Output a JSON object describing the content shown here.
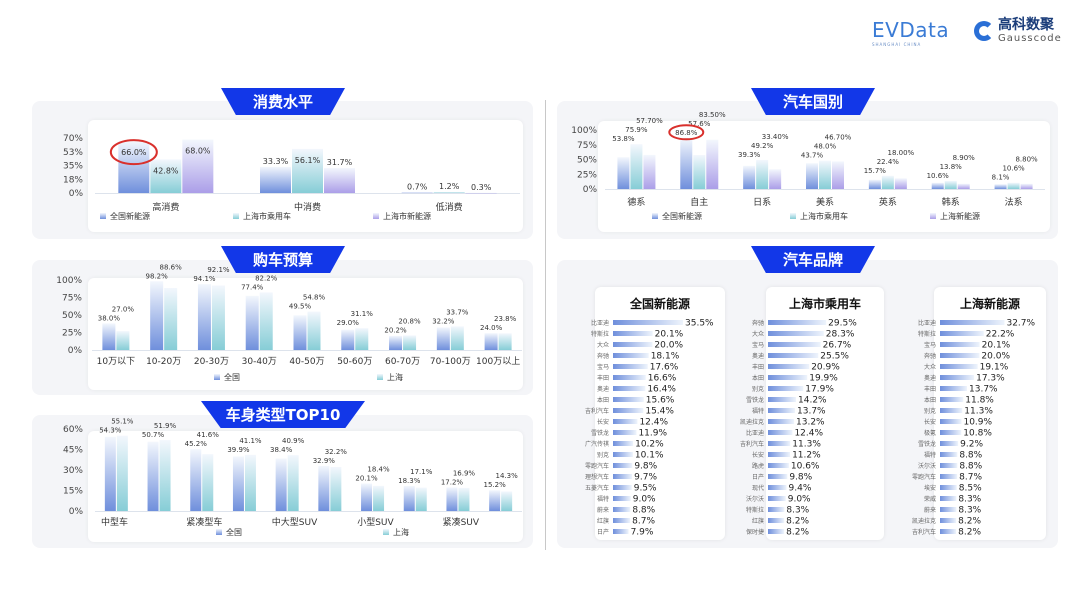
{
  "logos": {
    "evdata": "EVData",
    "evdata_sub": "SHANGHAI CHINA",
    "gauss_cn": "高科数聚",
    "gauss_en": "Gausscode"
  },
  "colors": {
    "banner": "#1237e8",
    "series_blue": "#6f8fdc",
    "series_teal": "#86cdd6",
    "series_purple": "#ab9ee8",
    "highlight_circle": "#d9302c"
  },
  "chart_data": [
    {
      "id": "consumption",
      "type": "bar",
      "title": "消费水平",
      "yticks": [
        "0%",
        "18%",
        "35%",
        "53%",
        "70%"
      ],
      "ylim": [
        0,
        70
      ],
      "categories": [
        "高消费",
        "中消费",
        "低消费"
      ],
      "series": [
        {
          "name": "全国新能源",
          "values": [
            66.0,
            33.3,
            0.7
          ],
          "labels": [
            "66.0%",
            "33.3%",
            "0.7%"
          ]
        },
        {
          "name": "上海市乘用车",
          "values": [
            42.8,
            56.1,
            1.2
          ],
          "labels": [
            "42.8%",
            "56.1%",
            "1.2%"
          ]
        },
        {
          "name": "上海市新能源",
          "values": [
            68.0,
            31.7,
            0.3
          ],
          "labels": [
            "68.0%",
            "31.7%",
            "0.3%"
          ]
        }
      ],
      "annotation": "red circle around 66.0%"
    },
    {
      "id": "budget",
      "type": "bar",
      "title": "购车预算",
      "yticks": [
        "0%",
        "25%",
        "50%",
        "75%",
        "100%"
      ],
      "ylim": [
        0,
        100
      ],
      "categories": [
        "10万以下",
        "10-20万",
        "20-30万",
        "30-40万",
        "40-50万",
        "50-60万",
        "60-70万",
        "70-100万",
        "100万以上"
      ],
      "series": [
        {
          "name": "全国",
          "values": [
            38.0,
            98.2,
            94.1,
            77.4,
            49.5,
            29.0,
            20.2,
            32.2,
            24.0
          ],
          "labels": [
            "38.0%",
            "98.2%",
            "94.1%",
            "77.4%",
            "49.5%",
            "29.0%",
            "20.2%",
            "32.2%",
            "24.0%"
          ]
        },
        {
          "name": "上海",
          "values": [
            27.0,
            88.6,
            92.1,
            82.2,
            54.8,
            31.1,
            20.8,
            33.7,
            23.8
          ],
          "labels": [
            "27.0%",
            "88.6%",
            "92.1%",
            "82.2%",
            "54.8%",
            "31.1%",
            "20.8%",
            "33.7%",
            "23.8%"
          ]
        }
      ]
    },
    {
      "id": "bodytype",
      "type": "bar",
      "title": "车身类型TOP10",
      "yticks": [
        "0%",
        "15%",
        "30%",
        "45%",
        "60%"
      ],
      "ylim": [
        0,
        60
      ],
      "categories": [
        "中型车",
        "",
        "紧凑型车",
        "",
        "中大型SUV",
        "",
        "小型SUV",
        "",
        "紧凑SUV",
        ""
      ],
      "series": [
        {
          "name": "全国",
          "values": [
            54.3,
            50.7,
            45.2,
            39.9,
            38.4,
            32.9,
            20.1,
            18.3,
            17.2,
            15.2
          ],
          "labels": [
            "54.3%",
            "50.7%",
            "45.2%",
            "39.9%",
            "38.4%",
            "32.9%",
            "20.1%",
            "18.3%",
            "17.2%",
            "15.2%"
          ]
        },
        {
          "name": "上海",
          "values": [
            55.1,
            51.9,
            41.6,
            41.1,
            40.9,
            32.2,
            18.4,
            17.1,
            16.9,
            14.3
          ],
          "labels": [
            "55.1%",
            "51.9%",
            "41.6%",
            "41.1%",
            "40.9%",
            "32.2%",
            "18.4%",
            "17.1%",
            "16.9%",
            "14.3%"
          ]
        }
      ]
    },
    {
      "id": "country",
      "type": "bar",
      "title": "汽车国别",
      "yticks": [
        "0%",
        "25%",
        "50%",
        "75%",
        "100%"
      ],
      "ylim": [
        0,
        100
      ],
      "categories": [
        "德系",
        "自主",
        "日系",
        "美系",
        "英系",
        "韩系",
        "法系"
      ],
      "series": [
        {
          "name": "全国新能源",
          "values": [
            53.8,
            86.8,
            39.3,
            43.7,
            15.7,
            10.6,
            8.1
          ],
          "labels": [
            "53.8%",
            "86.8%",
            "39.3%",
            "43.7%",
            "15.7%",
            "10.6%",
            "8.1%"
          ]
        },
        {
          "name": "上海市乘用车",
          "values": [
            75.9,
            57.6,
            49.2,
            48.0,
            22.4,
            13.8,
            10.6
          ],
          "labels": [
            "75.9%",
            "57.6%",
            "49.2%",
            "48.0%",
            "22.4%",
            "13.8%",
            "10.6%"
          ]
        },
        {
          "name": "上海新能源",
          "values": [
            57.7,
            83.5,
            33.4,
            46.7,
            18.0,
            8.9,
            8.8
          ],
          "labels": [
            "57.70%",
            "83.50%",
            "33.40%",
            "46.70%",
            "18.00%",
            "8.90%",
            "8.80%"
          ]
        }
      ],
      "annotation": "red circle around 86.8%"
    },
    {
      "id": "brands",
      "type": "bar",
      "title": "汽车品牌",
      "orientation": "horizontal",
      "lists": [
        {
          "title": "全国新能源",
          "items": [
            [
              "比亚迪",
              35.5
            ],
            [
              "特斯拉",
              20.1
            ],
            [
              "大众",
              20.0
            ],
            [
              "奔驰",
              18.1
            ],
            [
              "宝马",
              17.6
            ],
            [
              "丰田",
              16.6
            ],
            [
              "奥迪",
              16.4
            ],
            [
              "本田",
              15.6
            ],
            [
              "吉利汽车",
              15.4
            ],
            [
              "长安",
              12.4
            ],
            [
              "雪铁龙",
              11.9
            ],
            [
              "广汽传祺",
              10.2
            ],
            [
              "别克",
              10.1
            ],
            [
              "零跑汽车",
              9.8
            ],
            [
              "理想汽车",
              9.7
            ],
            [
              "五菱汽车",
              9.5
            ],
            [
              "福特",
              9.0
            ],
            [
              "蔚来",
              8.8
            ],
            [
              "红旗",
              8.7
            ],
            [
              "日产",
              7.9
            ]
          ]
        },
        {
          "title": "上海市乘用车",
          "items": [
            [
              "奔驰",
              29.5
            ],
            [
              "大众",
              28.3
            ],
            [
              "宝马",
              26.7
            ],
            [
              "奥迪",
              25.5
            ],
            [
              "丰田",
              20.9
            ],
            [
              "本田",
              19.9
            ],
            [
              "别克",
              17.9
            ],
            [
              "雪铁龙",
              14.2
            ],
            [
              "福特",
              13.7
            ],
            [
              "凯迪拉克",
              13.2
            ],
            [
              "比亚迪",
              12.4
            ],
            [
              "吉利汽车",
              11.3
            ],
            [
              "长安",
              11.2
            ],
            [
              "路虎",
              10.6
            ],
            [
              "日产",
              9.8
            ],
            [
              "现代",
              9.4
            ],
            [
              "沃尔沃",
              9.0
            ],
            [
              "特斯拉",
              8.3
            ],
            [
              "红旗",
              8.2
            ],
            [
              "保时捷",
              8.2
            ]
          ]
        },
        {
          "title": "上海新能源",
          "items": [
            [
              "比亚迪",
              32.7
            ],
            [
              "特斯拉",
              22.2
            ],
            [
              "宝马",
              20.1
            ],
            [
              "奔驰",
              20.0
            ],
            [
              "大众",
              19.1
            ],
            [
              "奥迪",
              17.3
            ],
            [
              "丰田",
              13.7
            ],
            [
              "本田",
              11.8
            ],
            [
              "别克",
              11.3
            ],
            [
              "长安",
              10.9
            ],
            [
              "极氪",
              10.8
            ],
            [
              "雪铁龙",
              9.2
            ],
            [
              "福特",
              8.8
            ],
            [
              "沃尔沃",
              8.8
            ],
            [
              "零跑汽车",
              8.7
            ],
            [
              "埃安",
              8.5
            ],
            [
              "荣威",
              8.3
            ],
            [
              "蔚来",
              8.3
            ],
            [
              "凯迪拉克",
              8.2
            ],
            [
              "吉利汽车",
              8.2
            ]
          ]
        }
      ]
    }
  ]
}
